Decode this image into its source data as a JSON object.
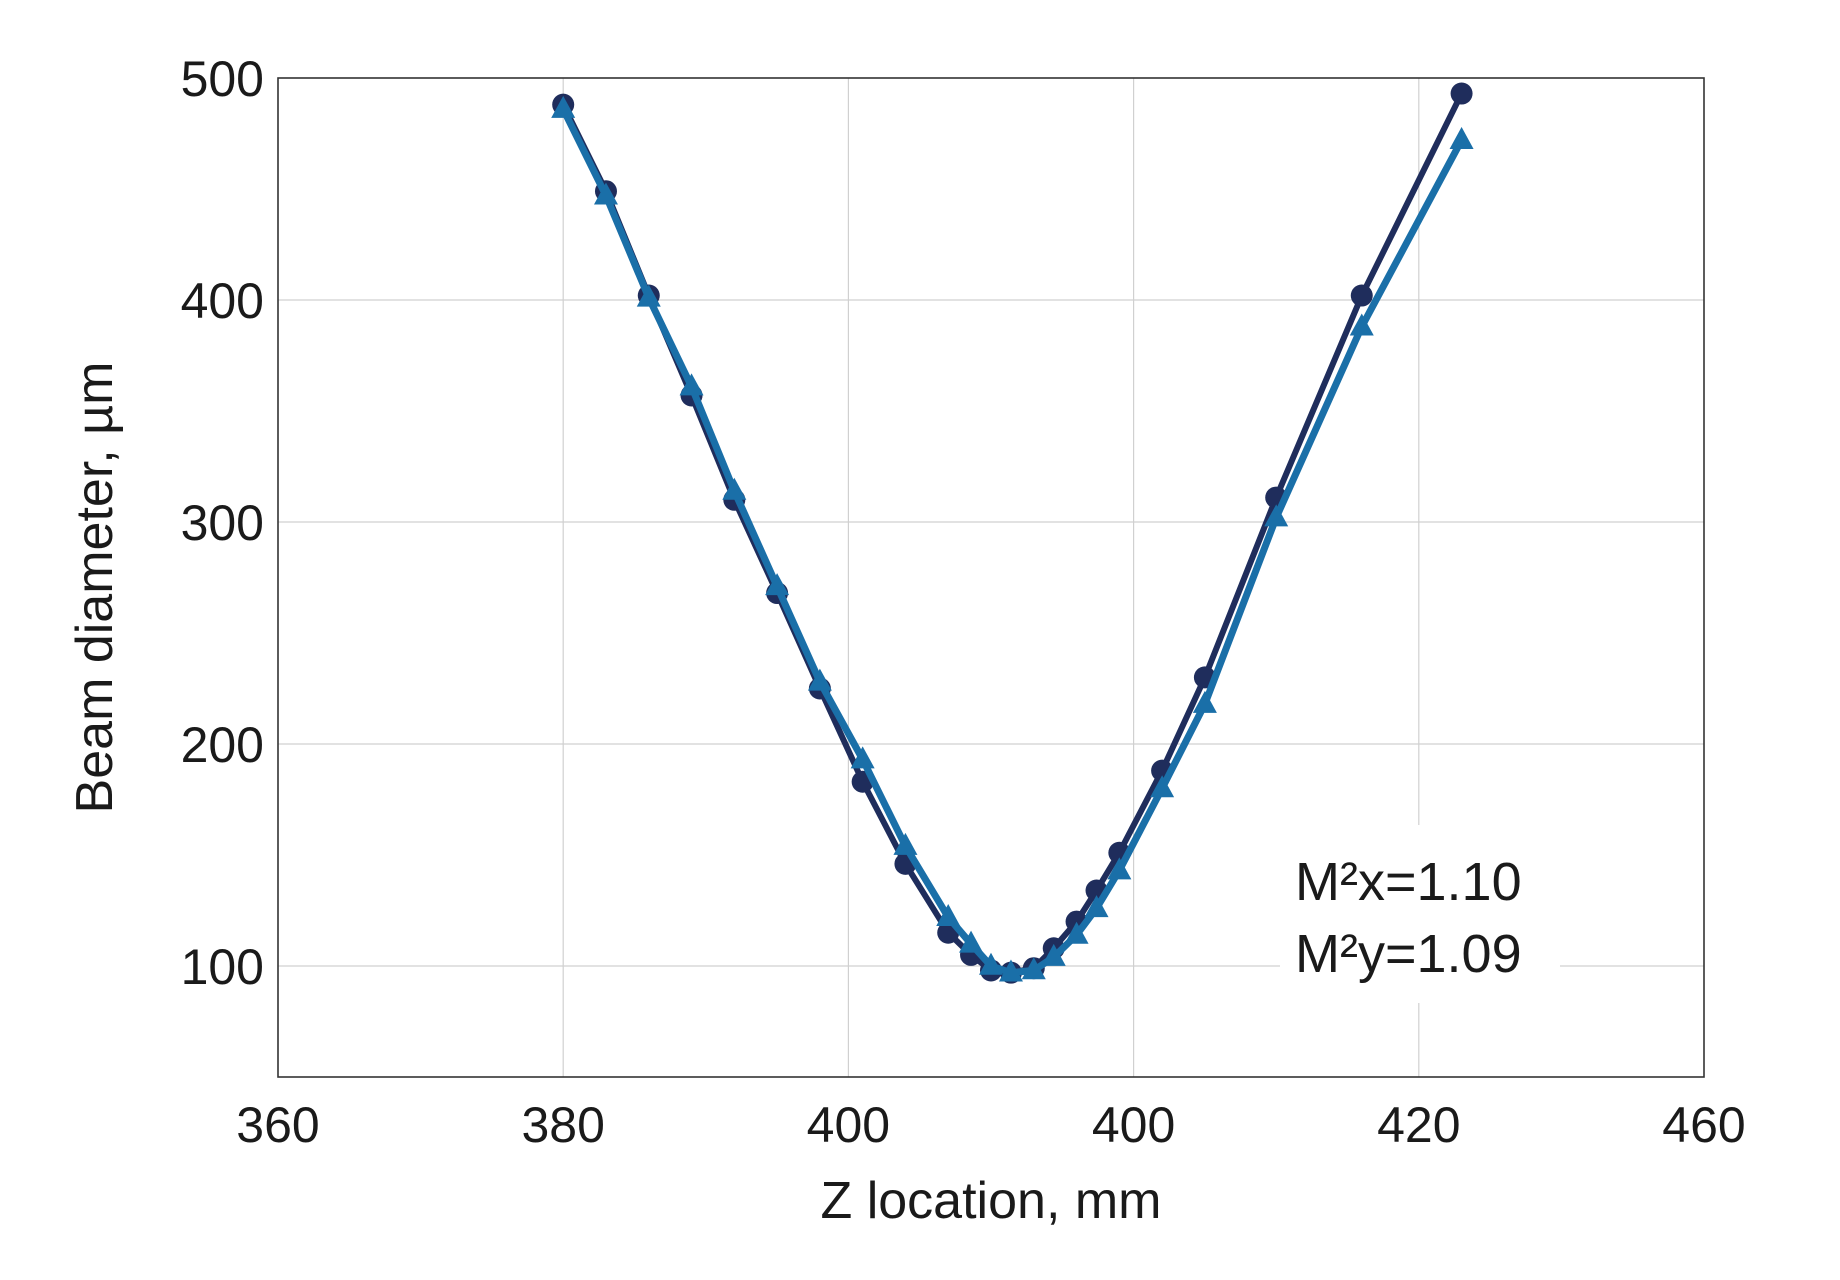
{
  "chart_data": {
    "type": "line",
    "title": "",
    "xlabel": "Z location, mm",
    "ylabel": "Beam diameter, µm",
    "x_ticks": [
      "360",
      "380",
      "400",
      "400",
      "420",
      "460"
    ],
    "y_ticks": [
      "100",
      "200",
      "300",
      "400",
      "500"
    ],
    "xlim": [
      0,
      5
    ],
    "ylim": [
      50,
      500
    ],
    "grid": true,
    "annotations": [
      "M²x=1.10",
      "M²y=1.09"
    ],
    "series": [
      {
        "marker": "circle",
        "color": "#1f2d5c",
        "x": [
          1.0,
          1.15,
          1.3,
          1.45,
          1.6,
          1.75,
          1.9,
          2.05,
          2.2,
          2.35,
          2.43,
          2.5,
          2.57,
          2.65,
          2.72,
          2.8,
          2.87,
          2.95,
          3.1,
          3.25,
          3.5,
          3.8,
          4.15
        ],
        "y": [
          488,
          449,
          402,
          357,
          310,
          268,
          225,
          183,
          146,
          115,
          105,
          98,
          97,
          99,
          108,
          120,
          134,
          151,
          188,
          230,
          311,
          402,
          493
        ]
      },
      {
        "marker": "triangle",
        "color": "#1a6fa8",
        "x": [
          1.0,
          1.15,
          1.3,
          1.45,
          1.6,
          1.75,
          1.9,
          2.05,
          2.2,
          2.35,
          2.43,
          2.5,
          2.57,
          2.65,
          2.72,
          2.8,
          2.87,
          2.95,
          3.1,
          3.25,
          3.5,
          3.8,
          4.15
        ],
        "y": [
          486,
          447,
          401,
          361,
          314,
          271,
          228,
          193,
          154,
          122,
          110,
          100,
          97,
          98,
          104,
          114,
          126,
          143,
          180,
          218,
          302,
          388,
          472
        ]
      }
    ]
  },
  "colors": {
    "series_dark": "#1f2d5c",
    "series_blue": "#1a6fa8",
    "grid": "#d0d0d0",
    "frame": "#333333"
  }
}
